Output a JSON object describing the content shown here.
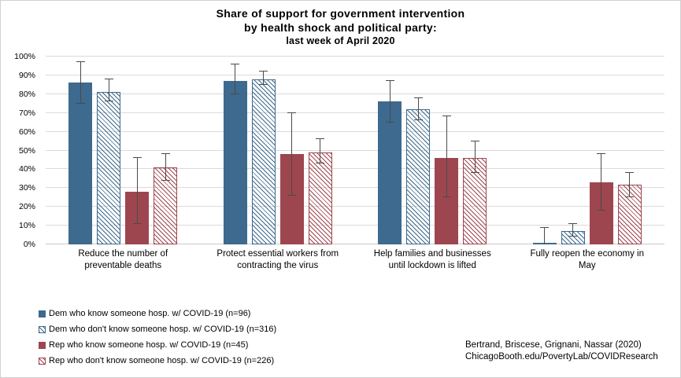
{
  "figure": {
    "title": [
      "Share of support for government intervention",
      "by health shock and political party:",
      "last week of April 2020"
    ],
    "footer": [
      "Bertrand, Briscese, Grignani, Nassar (2020)",
      "ChicagoBooth.edu/PovertyLab/COVIDResearch"
    ]
  },
  "chart_data": {
    "type": "bar",
    "title": "Share of support for government intervention by health shock and political party: last week of April 2020",
    "categories": [
      "Reduce the number of preventable deaths",
      "Protect essential workers from contracting the virus",
      "Help families and businesses until lockdown is lifted",
      "Fully reopen the economy in May"
    ],
    "series": [
      {
        "name": "Dem who know someone hosp. w/ COVID-19 (n=96)",
        "color": "#3d6a8e",
        "pattern": "solid",
        "values": [
          86,
          87,
          76,
          1
        ],
        "err_low": [
          75,
          80,
          65,
          0
        ],
        "err_high": [
          97,
          96,
          87,
          9
        ]
      },
      {
        "name": "Dem who don't know someone hosp. w/ COVID-19 (n=316)",
        "color": "#3d6a8e",
        "pattern": "hatch",
        "values": [
          81,
          88,
          72,
          7
        ],
        "err_low": [
          76,
          85,
          66,
          4
        ],
        "err_high": [
          88,
          92,
          78,
          11
        ]
      },
      {
        "name": "Rep who know someone hosp. w/ COVID-19 (n=45)",
        "color": "#9e4650",
        "pattern": "solid",
        "values": [
          28,
          48,
          46,
          33
        ],
        "err_low": [
          11,
          26,
          25,
          18
        ],
        "err_high": [
          46,
          70,
          68,
          48
        ]
      },
      {
        "name": "Rep who don't know someone hosp. w/ COVID-19 (n=226)",
        "color": "#9e4650",
        "pattern": "hatch",
        "values": [
          41,
          49,
          46,
          32
        ],
        "err_low": [
          34,
          43,
          38,
          25
        ],
        "err_high": [
          48,
          56,
          55,
          38
        ]
      }
    ],
    "ylim": [
      0,
      100
    ],
    "ytick_step": 10,
    "ytick_suffix": "%",
    "grid": "horizontal",
    "error_bars": true,
    "legend_position": "bottom-left",
    "colors": {
      "dem": "#3d6a8e",
      "rep": "#9e4650",
      "error_bar": "#4a4a4a",
      "gridline": "#dadada"
    }
  }
}
